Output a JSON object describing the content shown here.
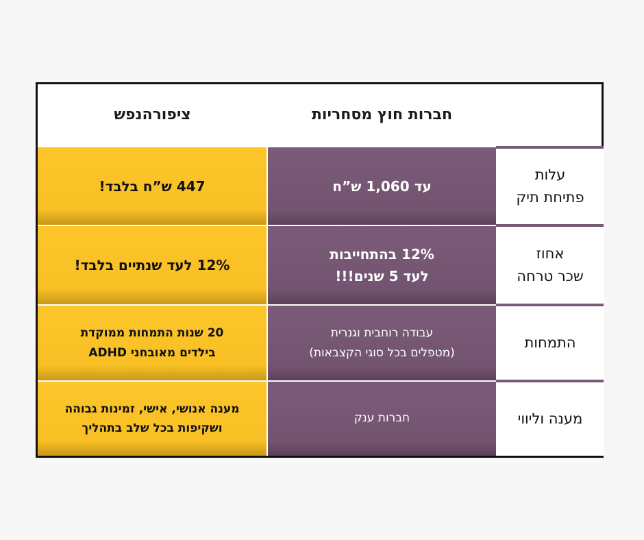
{
  "header": {
    "col_ziporenefesh": "ציפורהנפש",
    "col_external": "חברות חוץ מסחריות",
    "col_labels": ""
  },
  "rows": [
    {
      "label": [
        "עלות",
        "פתיחת תיק"
      ],
      "external": [
        "עד 1,060 ש”ח"
      ],
      "ziporenefesh": [
        "447 ש”ח בלבד!"
      ]
    },
    {
      "label": [
        "אחוז",
        "שכר טרחה"
      ],
      "external": [
        "12% בהתחייבות",
        "לעד 5 שנים!!!"
      ],
      "ziporenefesh": [
        "12% לעד שנתיים בלבד!"
      ]
    },
    {
      "label": [
        "התמחות"
      ],
      "external": [
        "עבודה רוחבית וגנרית",
        "(מטפלים בכל סוגי הקצבאות)"
      ],
      "ziporenefesh": [
        "20 שנות התמחות ממוקדת",
        "בילדים מאובחני ADHD"
      ]
    },
    {
      "label": [
        "מענה וליווי"
      ],
      "external": [
        "חברות ענק"
      ],
      "ziporenefesh": [
        "מענה אנושי, אישי, זמינות גבוהה",
        "ושקיפות בכל שלב בתהליך"
      ]
    }
  ],
  "colors": {
    "purple": "#775a73",
    "yellow": "#fcc52a",
    "border": "#111111",
    "background": "#f7f7f7"
  }
}
